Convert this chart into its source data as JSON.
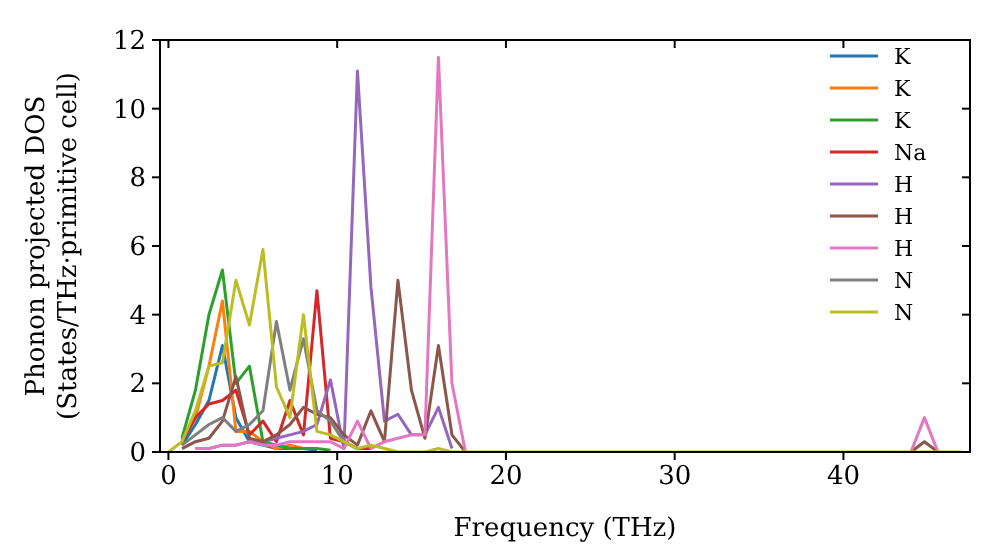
{
  "chart_data": {
    "type": "line",
    "xlabel": "Frequency (THz)",
    "ylabel": "Phonon projected DOS\n(States/THz·primitive cell)",
    "xlim": [
      -0.5,
      47.5
    ],
    "ylim": [
      0,
      12
    ],
    "xticks": [
      0,
      10,
      20,
      30,
      40
    ],
    "yticks": [
      0,
      2,
      4,
      6,
      8,
      10,
      12
    ],
    "grid": false,
    "legend": "top right",
    "marker": "none",
    "line_style": "solid",
    "x": [
      0,
      0.8,
      1.6,
      2.4,
      3.2,
      4.0,
      4.8,
      5.6,
      6.4,
      7.2,
      8.0,
      8.8,
      9.6,
      10.4,
      11.2,
      12.0,
      12.8,
      13.6,
      14.4,
      15.2,
      16.0,
      16.8,
      17.6,
      18.4,
      43.2,
      44.0,
      44.8,
      45.6,
      47.0
    ],
    "series": [
      {
        "name": "K",
        "color": "#1f77b4",
        "values": [
          null,
          0.2,
          0.8,
          1.5,
          3.1,
          1.0,
          0.3,
          0.2,
          0.1,
          0.1,
          0.1,
          0.05,
          null,
          null,
          null,
          null,
          null,
          null,
          null,
          null,
          null,
          null,
          null,
          null,
          null,
          null,
          null,
          null,
          null
        ]
      },
      {
        "name": "K",
        "color": "#ff7f0e",
        "values": [
          null,
          0.35,
          1.0,
          2.5,
          4.4,
          0.6,
          0.6,
          0.3,
          0.1,
          0.2,
          0.1,
          null,
          null,
          null,
          null,
          null,
          null,
          null,
          null,
          null,
          null,
          null,
          null,
          null,
          null,
          null,
          null,
          null,
          null
        ]
      },
      {
        "name": "K",
        "color": "#2ca02c",
        "values": [
          null,
          0.4,
          1.8,
          4.0,
          5.3,
          2.0,
          2.5,
          0.3,
          0.2,
          0.1,
          0.1,
          0.1,
          0.05,
          null,
          null,
          null,
          null,
          null,
          null,
          null,
          null,
          null,
          null,
          null,
          null,
          null,
          null,
          null,
          null
        ]
      },
      {
        "name": "Na",
        "color": "#d62728",
        "values": [
          null,
          0.3,
          1.0,
          1.4,
          1.5,
          1.8,
          0.5,
          0.9,
          0.3,
          1.5,
          0.5,
          4.7,
          0.4,
          0.3,
          0.1,
          0.1,
          null,
          null,
          null,
          null,
          null,
          null,
          null,
          null,
          null,
          null,
          null,
          null,
          null
        ]
      },
      {
        "name": "H",
        "color": "#9467bd",
        "values": [
          null,
          null,
          0.1,
          0.1,
          0.2,
          0.2,
          0.3,
          0.3,
          0.4,
          0.5,
          0.6,
          0.8,
          2.1,
          0.1,
          11.1,
          4.8,
          0.9,
          1.1,
          0.5,
          0.5,
          1.3,
          0.1,
          null,
          null,
          null,
          null,
          null,
          null,
          null
        ]
      },
      {
        "name": "H",
        "color": "#8c564b",
        "values": [
          null,
          0.1,
          0.3,
          0.4,
          0.9,
          2.2,
          0.4,
          0.3,
          0.5,
          0.8,
          1.3,
          1.1,
          1.0,
          0.5,
          0.2,
          1.2,
          0.3,
          5.0,
          1.8,
          0.4,
          3.1,
          0.5,
          0,
          null,
          null,
          0,
          0.3,
          0,
          null
        ]
      },
      {
        "name": "H",
        "color": "#e377c2",
        "values": [
          null,
          null,
          0.1,
          0.1,
          0.2,
          0.2,
          0.3,
          0.2,
          0.2,
          0.3,
          0.3,
          0.3,
          0.3,
          0.1,
          0.9,
          0.1,
          0.3,
          0.4,
          0.5,
          0.5,
          11.5,
          2.0,
          0,
          null,
          null,
          0,
          1.0,
          0,
          null
        ]
      },
      {
        "name": "N",
        "color": "#7f7f7f",
        "values": [
          null,
          0.2,
          0.5,
          0.8,
          1.0,
          0.6,
          0.8,
          1.2,
          3.8,
          1.8,
          3.3,
          1.2,
          0.9,
          0.3,
          0.1,
          null,
          null,
          null,
          null,
          null,
          null,
          null,
          null,
          null,
          null,
          null,
          null,
          null,
          null
        ]
      },
      {
        "name": "N",
        "color": "#bcbd22",
        "values": [
          0,
          0.3,
          1.2,
          2.5,
          2.6,
          5.0,
          3.7,
          5.9,
          1.9,
          1.0,
          4.0,
          0.6,
          0.5,
          0.3,
          0.1,
          0.2,
          0.1,
          0,
          0,
          0,
          0.1,
          0,
          0,
          0,
          0,
          0,
          0,
          0,
          0
        ]
      }
    ]
  }
}
